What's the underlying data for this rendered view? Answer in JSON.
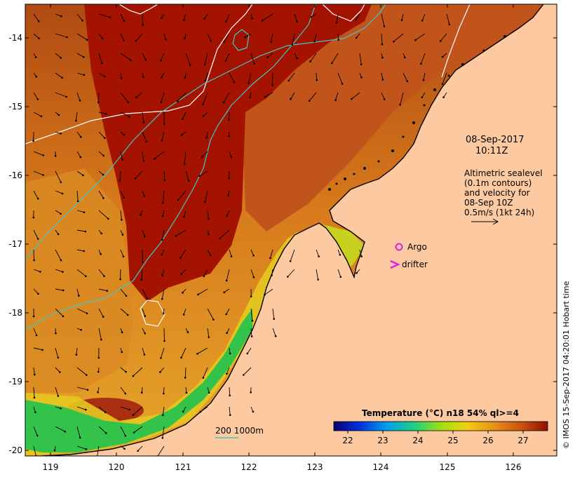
{
  "map": {
    "date_label": "08-Sep-2017",
    "time_label": "10:11Z",
    "altimetry_lines": [
      "Altimetric sealevel",
      "(0.1m contours)",
      "and velocity for",
      "08-Sep 10Z",
      "0.5m/s (1kt 24h)"
    ],
    "argo_label": "Argo",
    "drifter_label": "drifter",
    "bathymetry_label": "200  1000m",
    "credit": "© IMOS 15-Sep-2017 04:20:01 Hobart time",
    "lon_ticks": [
      "119",
      "120",
      "121",
      "122",
      "123",
      "124",
      "125",
      "126"
    ],
    "lat_ticks": [
      "-14",
      "-15",
      "-16",
      "-17",
      "-18",
      "-19",
      "-20"
    ]
  },
  "colorbar": {
    "title": "Temperature (°C) n18 54% ql>=4",
    "ticks": [
      "22",
      "23",
      "24",
      "25",
      "26",
      "27"
    ],
    "range": [
      21.6,
      27.7
    ]
  },
  "colors": {
    "land": "#fdc9a1",
    "warm_sea": "#a81000",
    "mid_sea": "#c85a10",
    "cool_sea": "#e39a1a",
    "shelf": "#e0c820",
    "coast_green": "#33c24a",
    "contour": "#ffffff",
    "bathy_line": "#40c8c8",
    "argo": "#e020e0"
  }
}
